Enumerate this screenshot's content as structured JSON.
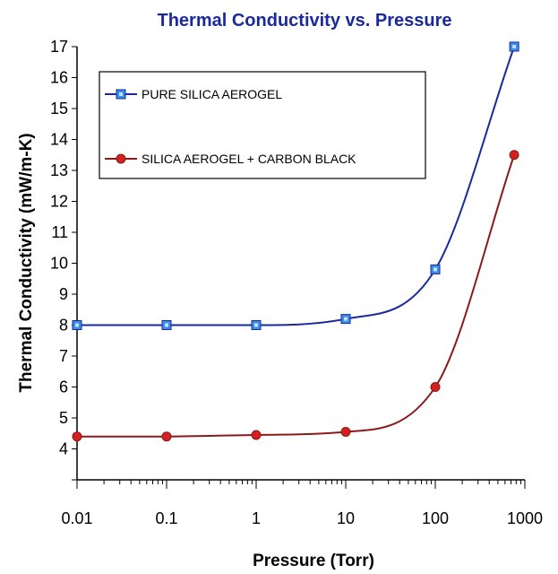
{
  "chart_data": {
    "type": "line",
    "title": "Thermal Conductivity vs. Pressure",
    "xlabel": "Pressure (Torr)",
    "ylabel": "Thermal Conductivity (mW/m-K)",
    "xscale": "log",
    "xlim": [
      0.01,
      1000
    ],
    "ylim": [
      3,
      17
    ],
    "x_ticks": [
      0.01,
      0.1,
      1,
      10,
      100,
      1000
    ],
    "x_tick_labels": [
      "0.01",
      "0.1",
      "1",
      "10",
      "100",
      "1000"
    ],
    "y_ticks": [
      4,
      5,
      6,
      7,
      8,
      9,
      10,
      11,
      12,
      13,
      14,
      15,
      16,
      17
    ],
    "y_tick_labels": [
      "4",
      "5",
      "6",
      "7",
      "8",
      "9",
      "10",
      "11",
      "12",
      "13",
      "14",
      "15",
      "16",
      "17"
    ],
    "grid": false,
    "legend_position": "top-left",
    "series": [
      {
        "name": "PURE SILICA AEROGEL",
        "color": "#1a2a9c",
        "marker": "square",
        "marker_color": "#3a8ee6",
        "x": [
          0.01,
          0.1,
          1,
          10,
          100,
          760
        ],
        "y": [
          8.0,
          8.0,
          8.0,
          8.2,
          9.8,
          17.0
        ]
      },
      {
        "name": "SILICA AEROGEL + CARBON BLACK",
        "color": "#8b1a1a",
        "marker": "circle",
        "marker_color": "#d42020",
        "x": [
          0.01,
          0.1,
          1,
          10,
          100,
          760
        ],
        "y": [
          4.4,
          4.4,
          4.45,
          4.55,
          6.0,
          13.5
        ]
      }
    ]
  }
}
